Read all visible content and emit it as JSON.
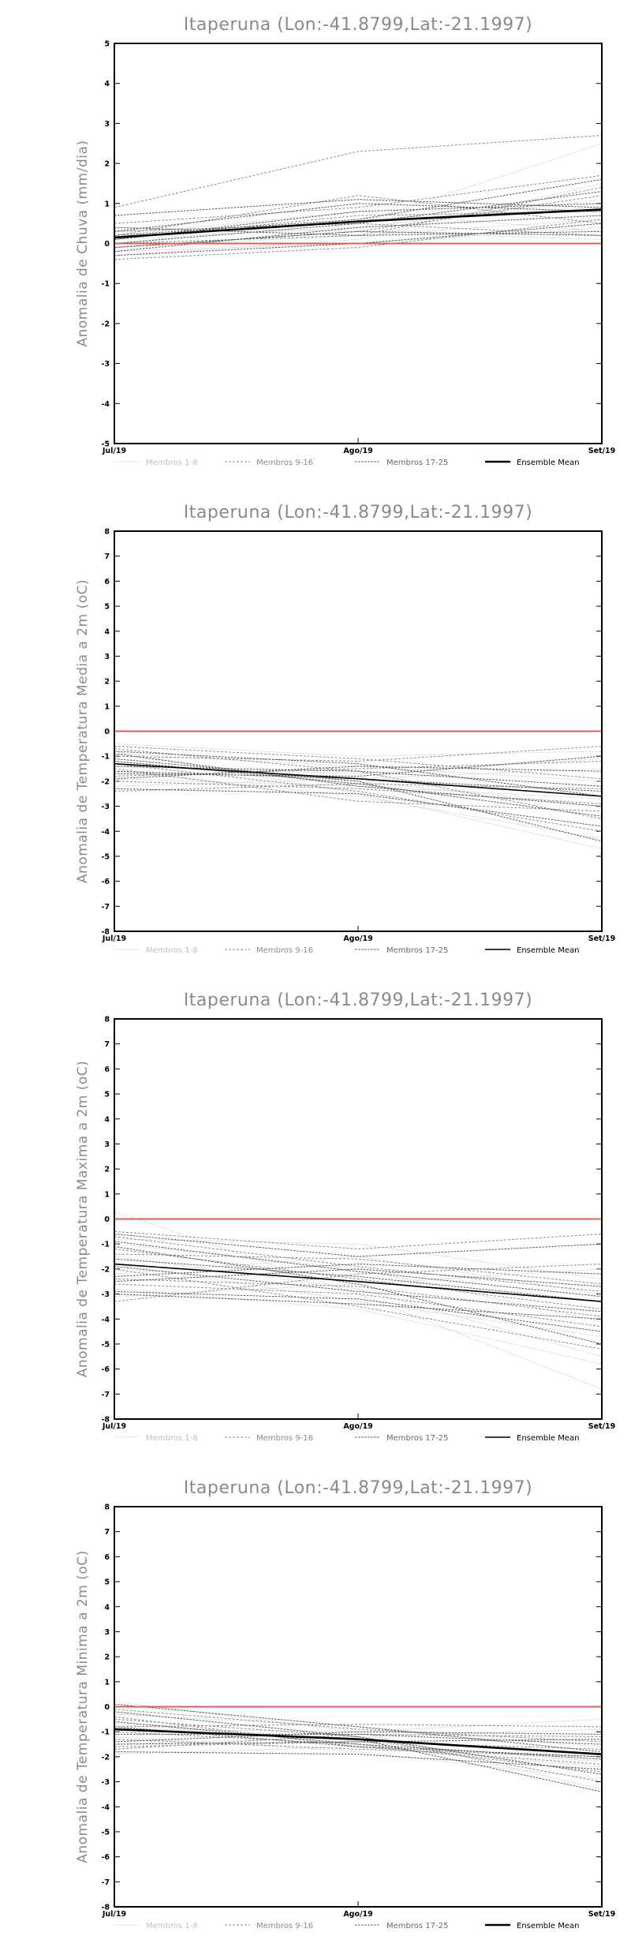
{
  "colors": {
    "group1": "#c8c8c8",
    "group2": "#8c8c8c",
    "group3": "#555555",
    "mean": "#000000",
    "zero_line": "#e06060"
  },
  "chart_data": [
    {
      "type": "line",
      "title": "Itaperuna (Lon:-41.8799,Lat:-21.1997)",
      "ylabel": "Anomalia de Chuva (mm/dia)",
      "xlabel": "",
      "x": [
        "Jul/19",
        "Ago/19",
        "Set/19"
      ],
      "ylim": [
        -5,
        5
      ],
      "yticks": [
        -5,
        -4,
        -3,
        -2,
        -1,
        0,
        1,
        2,
        3,
        4,
        5
      ],
      "grid": false,
      "legend": [
        "Membros 1-8",
        "Membros 9-16",
        "Membros 17-25",
        "Ensemble Mean"
      ],
      "legend_position": "bottom",
      "mean_bold": true,
      "series": [
        {
          "group": 1,
          "values": [
            0.3,
            0.5,
            2.5
          ]
        },
        {
          "group": 1,
          "values": [
            0.1,
            0.4,
            1.1
          ]
        },
        {
          "group": 1,
          "values": [
            -0.1,
            0.2,
            0.6
          ]
        },
        {
          "group": 1,
          "values": [
            0.2,
            0.8,
            0.3
          ]
        },
        {
          "group": 1,
          "values": [
            -0.3,
            0.1,
            1.5
          ]
        },
        {
          "group": 1,
          "values": [
            0.0,
            0.6,
            0.9
          ]
        },
        {
          "group": 1,
          "values": [
            0.4,
            0.3,
            0.1
          ]
        },
        {
          "group": 1,
          "values": [
            -0.2,
            0.0,
            0.4
          ]
        },
        {
          "group": 2,
          "values": [
            0.9,
            2.3,
            2.7
          ]
        },
        {
          "group": 2,
          "values": [
            0.2,
            1.2,
            0.5
          ]
        },
        {
          "group": 2,
          "values": [
            0.5,
            0.9,
            1.7
          ]
        },
        {
          "group": 2,
          "values": [
            -0.1,
            0.3,
            1.2
          ]
        },
        {
          "group": 2,
          "values": [
            0.1,
            0.7,
            0.8
          ]
        },
        {
          "group": 2,
          "values": [
            0.3,
            0.5,
            0.2
          ]
        },
        {
          "group": 2,
          "values": [
            -0.4,
            -0.1,
            0.6
          ]
        },
        {
          "group": 2,
          "values": [
            0.0,
            0.2,
            1.4
          ]
        },
        {
          "group": 3,
          "values": [
            0.7,
            1.1,
            0.9
          ]
        },
        {
          "group": 3,
          "values": [
            0.2,
            0.6,
            1.6
          ]
        },
        {
          "group": 3,
          "values": [
            -0.2,
            0.4,
            0.7
          ]
        },
        {
          "group": 3,
          "values": [
            0.1,
            0.8,
            1.0
          ]
        },
        {
          "group": 3,
          "values": [
            0.4,
            0.2,
            0.3
          ]
        },
        {
          "group": 3,
          "values": [
            -0.3,
            0.0,
            0.5
          ]
        },
        {
          "group": 3,
          "values": [
            0.0,
            0.5,
            1.3
          ]
        },
        {
          "group": 3,
          "values": [
            0.3,
            1.0,
            0.8
          ]
        },
        {
          "group": 3,
          "values": [
            -0.1,
            0.3,
            0.2
          ]
        }
      ],
      "mean": [
        0.15,
        0.55,
        0.85
      ]
    },
    {
      "type": "line",
      "title": "Itaperuna (Lon:-41.8799,Lat:-21.1997)",
      "ylabel": "Anomalia de Temperatura Media a 2m (oC)",
      "xlabel": "",
      "x": [
        "Jul/19",
        "Ago/19",
        "Set/19"
      ],
      "ylim": [
        -8,
        8
      ],
      "yticks": [
        -8,
        -7,
        -6,
        -5,
        -4,
        -3,
        -2,
        -1,
        0,
        1,
        2,
        3,
        4,
        5,
        6,
        7,
        8
      ],
      "grid": false,
      "legend": [
        "Membros 1-8",
        "Membros 9-16",
        "Membros 17-25",
        "Ensemble Mean"
      ],
      "legend_position": "bottom",
      "mean_bold": false,
      "series": [
        {
          "group": 1,
          "values": [
            -0.8,
            -2.5,
            -4.7
          ]
        },
        {
          "group": 1,
          "values": [
            -1.2,
            -2.0,
            -3.0
          ]
        },
        {
          "group": 1,
          "values": [
            -2.2,
            -1.9,
            -1.5
          ]
        },
        {
          "group": 1,
          "values": [
            -0.5,
            -1.0,
            -0.8
          ]
        },
        {
          "group": 1,
          "values": [
            -1.6,
            -2.6,
            -4.3
          ]
        },
        {
          "group": 1,
          "values": [
            -0.9,
            -1.4,
            -2.0
          ]
        },
        {
          "group": 1,
          "values": [
            -1.9,
            -2.2,
            -2.7
          ]
        },
        {
          "group": 1,
          "values": [
            -1.4,
            -1.7,
            -1.1
          ]
        },
        {
          "group": 2,
          "values": [
            -0.7,
            -1.6,
            -3.5
          ]
        },
        {
          "group": 2,
          "values": [
            -1.0,
            -1.2,
            -0.6
          ]
        },
        {
          "group": 2,
          "values": [
            -2.4,
            -2.1,
            -2.3
          ]
        },
        {
          "group": 2,
          "values": [
            -1.3,
            -2.4,
            -4.0
          ]
        },
        {
          "group": 2,
          "values": [
            -0.6,
            -1.1,
            -1.9
          ]
        },
        {
          "group": 2,
          "values": [
            -1.8,
            -1.5,
            -1.2
          ]
        },
        {
          "group": 2,
          "values": [
            -1.5,
            -2.8,
            -3.2
          ]
        },
        {
          "group": 2,
          "values": [
            -2.0,
            -2.3,
            -2.9
          ]
        },
        {
          "group": 3,
          "values": [
            -1.1,
            -2.0,
            -4.4
          ]
        },
        {
          "group": 3,
          "values": [
            -0.8,
            -1.3,
            -2.6
          ]
        },
        {
          "group": 3,
          "values": [
            -1.7,
            -1.8,
            -1.0
          ]
        },
        {
          "group": 3,
          "values": [
            -2.3,
            -2.5,
            -3.8
          ]
        },
        {
          "group": 3,
          "values": [
            -1.4,
            -1.6,
            -2.2
          ]
        },
        {
          "group": 3,
          "values": [
            -0.9,
            -2.2,
            -3.0
          ]
        },
        {
          "group": 3,
          "values": [
            -1.9,
            -1.4,
            -1.6
          ]
        },
        {
          "group": 3,
          "values": [
            -1.2,
            -2.1,
            -3.4
          ]
        },
        {
          "group": 3,
          "values": [
            -1.6,
            -1.9,
            -2.4
          ]
        }
      ],
      "mean": [
        -1.3,
        -1.9,
        -2.6
      ]
    },
    {
      "type": "line",
      "title": "Itaperuna (Lon:-41.8799,Lat:-21.1997)",
      "ylabel": "Anomalia de Temperatura Maxima a 2m (oC)",
      "xlabel": "",
      "x": [
        "Jul/19",
        "Ago/19",
        "Set/19"
      ],
      "ylim": [
        -8,
        8
      ],
      "yticks": [
        -8,
        -7,
        -6,
        -5,
        -4,
        -3,
        -2,
        -1,
        0,
        1,
        2,
        3,
        4,
        5,
        6,
        7,
        8
      ],
      "grid": false,
      "legend": [
        "Membros 1-8",
        "Membros 9-16",
        "Membros 17-25",
        "Ensemble Mean"
      ],
      "legend_position": "bottom",
      "mean_bold": false,
      "series": [
        {
          "group": 1,
          "values": [
            0.3,
            -3.0,
            -6.8
          ]
        },
        {
          "group": 1,
          "values": [
            -1.5,
            -2.8,
            -5.5
          ]
        },
        {
          "group": 1,
          "values": [
            -2.2,
            -1.5,
            -3.0
          ]
        },
        {
          "group": 1,
          "values": [
            -0.8,
            -1.0,
            -2.4
          ]
        },
        {
          "group": 1,
          "values": [
            -2.8,
            -3.6,
            -5.8
          ]
        },
        {
          "group": 1,
          "values": [
            -1.0,
            -2.0,
            -4.1
          ]
        },
        {
          "group": 1,
          "values": [
            -3.1,
            -2.6,
            -2.0
          ]
        },
        {
          "group": 1,
          "values": [
            -1.8,
            -3.3,
            -4.7
          ]
        },
        {
          "group": 2,
          "values": [
            -0.5,
            -1.2,
            -0.6
          ]
        },
        {
          "group": 2,
          "values": [
            -1.2,
            -2.4,
            -3.6
          ]
        },
        {
          "group": 2,
          "values": [
            -2.6,
            -3.0,
            -4.3
          ]
        },
        {
          "group": 2,
          "values": [
            -0.7,
            -1.9,
            -2.9
          ]
        },
        {
          "group": 2,
          "values": [
            -3.3,
            -2.2,
            -1.8
          ]
        },
        {
          "group": 2,
          "values": [
            -2.0,
            -3.5,
            -5.2
          ]
        },
        {
          "group": 2,
          "values": [
            -1.4,
            -1.6,
            -2.6
          ]
        },
        {
          "group": 2,
          "values": [
            -2.4,
            -2.7,
            -3.9
          ]
        },
        {
          "group": 3,
          "values": [
            -0.6,
            -1.5,
            -1.0
          ]
        },
        {
          "group": 3,
          "values": [
            -1.6,
            -2.3,
            -3.3
          ]
        },
        {
          "group": 3,
          "values": [
            -2.9,
            -3.2,
            -4.5
          ]
        },
        {
          "group": 3,
          "values": [
            -1.1,
            -2.6,
            -5.0
          ]
        },
        {
          "group": 3,
          "values": [
            -2.3,
            -1.8,
            -2.2
          ]
        },
        {
          "group": 3,
          "values": [
            -3.0,
            -3.4,
            -4.0
          ]
        },
        {
          "group": 3,
          "values": [
            -0.9,
            -2.1,
            -3.1
          ]
        },
        {
          "group": 3,
          "values": [
            -1.9,
            -2.9,
            -3.7
          ]
        },
        {
          "group": 3,
          "values": [
            -2.5,
            -2.0,
            -2.7
          ]
        }
      ],
      "mean": [
        -1.8,
        -2.5,
        -3.3
      ]
    },
    {
      "type": "line",
      "title": "Itaperuna (Lon:-41.8799,Lat:-21.1997)",
      "ylabel": "Anomalia de Temperatura Minima a 2m (oC)",
      "xlabel": "",
      "x": [
        "Jul/19",
        "Ago/19",
        "Set/19"
      ],
      "ylim": [
        -8,
        8
      ],
      "yticks": [
        -8,
        -7,
        -6,
        -5,
        -4,
        -3,
        -2,
        -1,
        0,
        1,
        2,
        3,
        4,
        5,
        6,
        7,
        8
      ],
      "grid": false,
      "legend": [
        "Membros 1-8",
        "Membros 9-16",
        "Membros 17-25",
        "Ensemble Mean"
      ],
      "legend_position": "bottom",
      "mean_bold": true,
      "series": [
        {
          "group": 1,
          "values": [
            0.2,
            -1.0,
            -3.3
          ]
        },
        {
          "group": 1,
          "values": [
            -0.6,
            -1.4,
            -2.2
          ]
        },
        {
          "group": 1,
          "values": [
            -1.5,
            -1.2,
            -0.9
          ]
        },
        {
          "group": 1,
          "values": [
            -0.3,
            -0.8,
            -1.6
          ]
        },
        {
          "group": 1,
          "values": [
            -1.9,
            -1.6,
            -2.4
          ]
        },
        {
          "group": 1,
          "values": [
            -0.9,
            -1.0,
            -0.5
          ]
        },
        {
          "group": 1,
          "values": [
            -1.2,
            -1.8,
            -2.9
          ]
        },
        {
          "group": 1,
          "values": [
            -0.7,
            -1.3,
            -1.9
          ]
        },
        {
          "group": 2,
          "values": [
            -0.1,
            -0.9,
            -1.4
          ]
        },
        {
          "group": 2,
          "values": [
            -1.0,
            -1.5,
            -2.6
          ]
        },
        {
          "group": 2,
          "values": [
            -1.7,
            -1.1,
            -1.2
          ]
        },
        {
          "group": 2,
          "values": [
            -0.5,
            -1.2,
            -3.0
          ]
        },
        {
          "group": 2,
          "values": [
            -1.3,
            -1.7,
            -2.0
          ]
        },
        {
          "group": 2,
          "values": [
            -0.8,
            -0.7,
            -0.8
          ]
        },
        {
          "group": 2,
          "values": [
            -1.6,
            -1.4,
            -1.7
          ]
        },
        {
          "group": 2,
          "values": [
            -0.4,
            -1.6,
            -2.3
          ]
        },
        {
          "group": 3,
          "values": [
            0.1,
            -0.8,
            -1.8
          ]
        },
        {
          "group": 3,
          "values": [
            -0.9,
            -1.3,
            -3.4
          ]
        },
        {
          "group": 3,
          "values": [
            -1.4,
            -1.0,
            -1.1
          ]
        },
        {
          "group": 3,
          "values": [
            -0.6,
            -1.5,
            -2.1
          ]
        },
        {
          "group": 3,
          "values": [
            -1.8,
            -1.9,
            -2.5
          ]
        },
        {
          "group": 3,
          "values": [
            -1.1,
            -1.1,
            -1.5
          ]
        },
        {
          "group": 3,
          "values": [
            -0.2,
            -1.2,
            -2.7
          ]
        },
        {
          "group": 3,
          "values": [
            -1.5,
            -1.4,
            -1.3
          ]
        },
        {
          "group": 3,
          "values": [
            -0.8,
            -1.6,
            -2.0
          ]
        }
      ],
      "mean": [
        -0.9,
        -1.3,
        -1.9
      ]
    }
  ]
}
